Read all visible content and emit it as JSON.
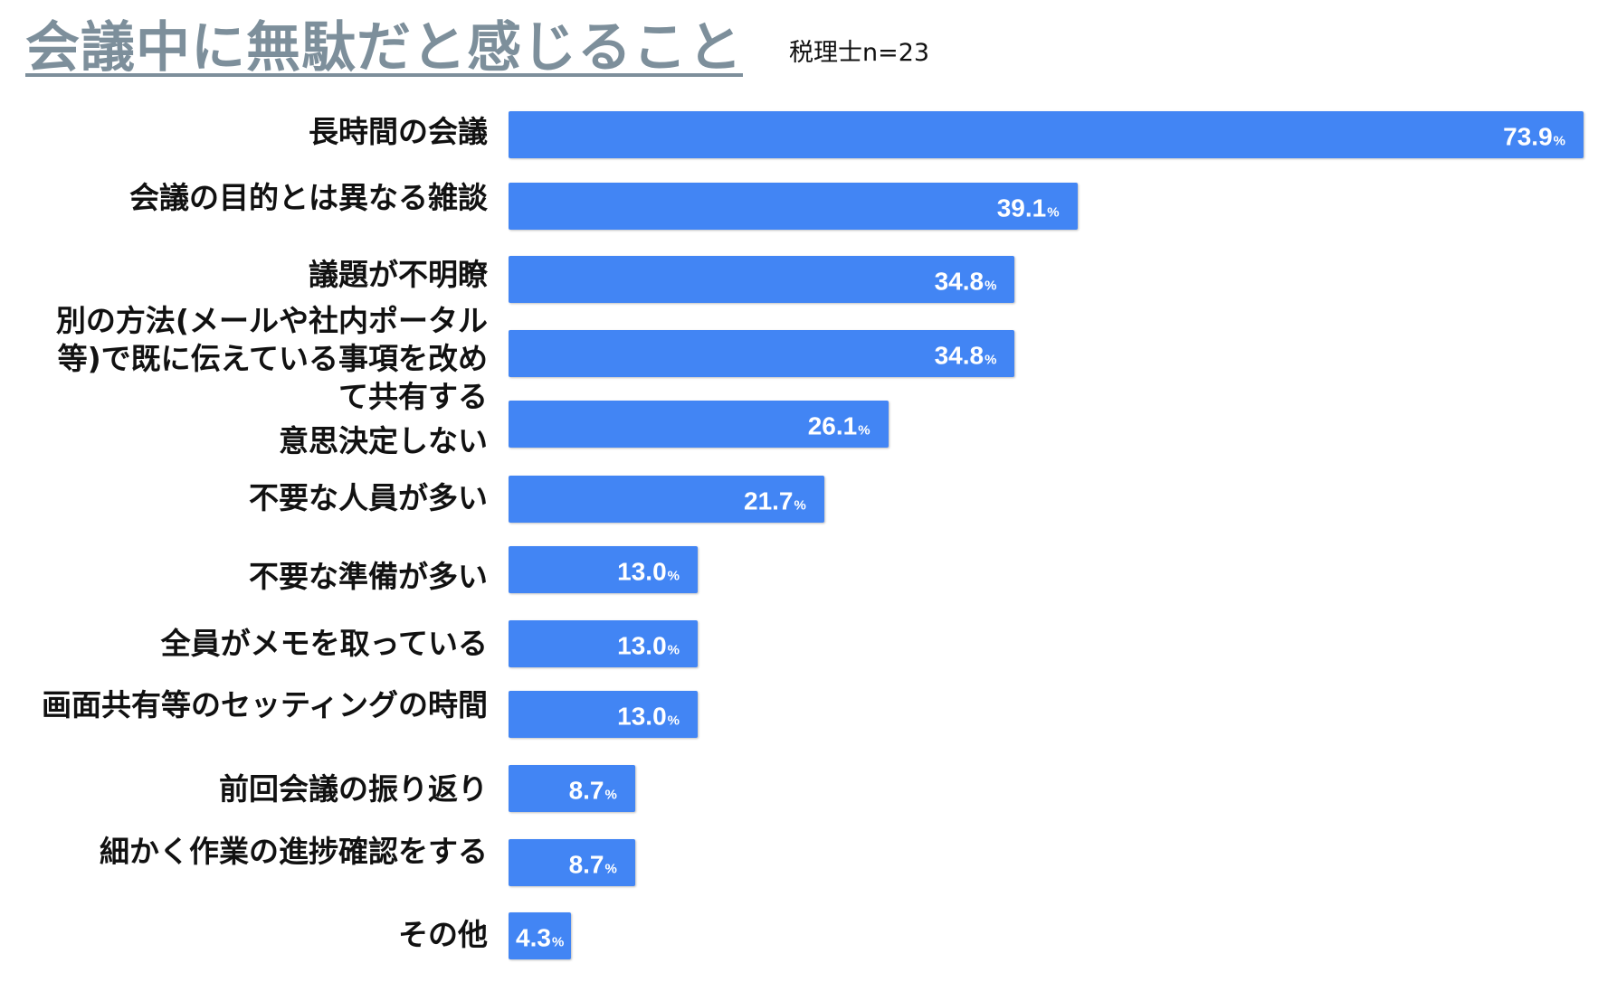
{
  "chart_data": {
    "type": "bar",
    "orientation": "horizontal",
    "title": "会議中に無駄だと感じること",
    "subtitle": "税理士n=23",
    "unit": "%",
    "categories": [
      "長時間の会議",
      "会議の目的とは異なる雑談",
      "議題が不明瞭",
      "別の方法(メールや社内ポータル\n等)で既に伝えている事項を改め\nて共有する",
      "意思決定しない",
      "不要な人員が多い",
      "不要な準備が多い",
      "全員がメモを取っている",
      "画面共有等のセッティングの時間",
      "前回会議の振り返り",
      "細かく作業の進捗確認をする",
      "その他"
    ],
    "values": [
      73.9,
      39.1,
      34.8,
      34.8,
      26.1,
      21.7,
      13.0,
      13.0,
      13.0,
      8.7,
      8.7,
      4.3
    ],
    "value_labels": [
      "73.9",
      "39.1",
      "34.8",
      "34.8",
      "26.1",
      "21.7",
      "13.0",
      "13.0",
      "13.0",
      "8.7",
      "8.7",
      "4.3"
    ],
    "xlim": [
      0,
      73.9
    ],
    "grid": false,
    "bar_color": "#4285f4"
  }
}
